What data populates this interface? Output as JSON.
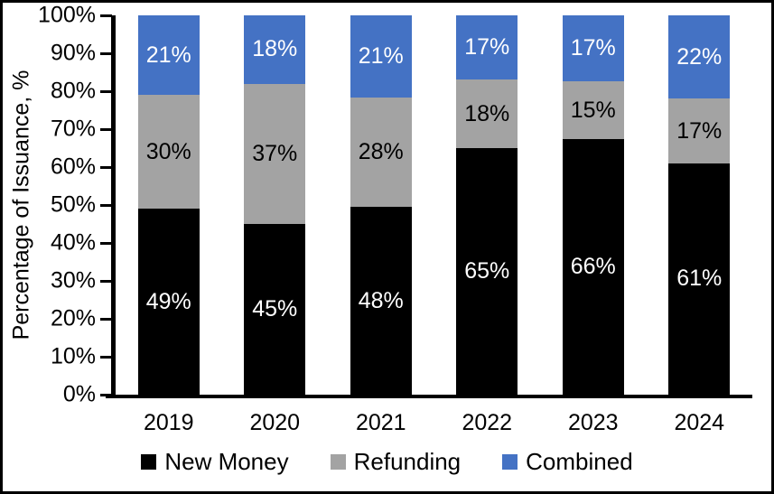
{
  "chart_data": {
    "type": "bar",
    "stacked": true,
    "title": "",
    "xlabel": "",
    "ylabel": "Percentage of Issuance, %",
    "categories": [
      "2019",
      "2020",
      "2021",
      "2022",
      "2023",
      "2024"
    ],
    "series": [
      {
        "name": "New Money",
        "color": "#000000",
        "label_color": "#FFFFFF",
        "values": [
          49,
          45,
          48,
          65,
          66,
          61
        ],
        "labels": [
          "49%",
          "45%",
          "48%",
          "65%",
          "66%",
          "61%"
        ]
      },
      {
        "name": "Refunding",
        "color": "#A3A3A3",
        "label_color": "#000000",
        "values": [
          30,
          37,
          28,
          18,
          15,
          17
        ],
        "labels": [
          "30%",
          "37%",
          "28%",
          "18%",
          "15%",
          "17%"
        ]
      },
      {
        "name": "Combined",
        "color": "#4472C4",
        "label_color": "#FFFFFF",
        "values": [
          21,
          18,
          21,
          17,
          17,
          22
        ],
        "labels": [
          "21%",
          "18%",
          "21%",
          "17%",
          "17%",
          "22%"
        ]
      }
    ],
    "y_axis": {
      "min": 0,
      "max": 100,
      "step": 10,
      "tick_labels": [
        "0%",
        "10%",
        "20%",
        "30%",
        "40%",
        "50%",
        "60%",
        "70%",
        "80%",
        "90%",
        "100%"
      ]
    },
    "legend": {
      "position": "bottom",
      "items": [
        "New Money",
        "Refunding",
        "Combined"
      ]
    },
    "grid": false,
    "colors": {
      "axis": "#000000",
      "background": "#FFFFFF",
      "frame_border": "#000000"
    }
  }
}
